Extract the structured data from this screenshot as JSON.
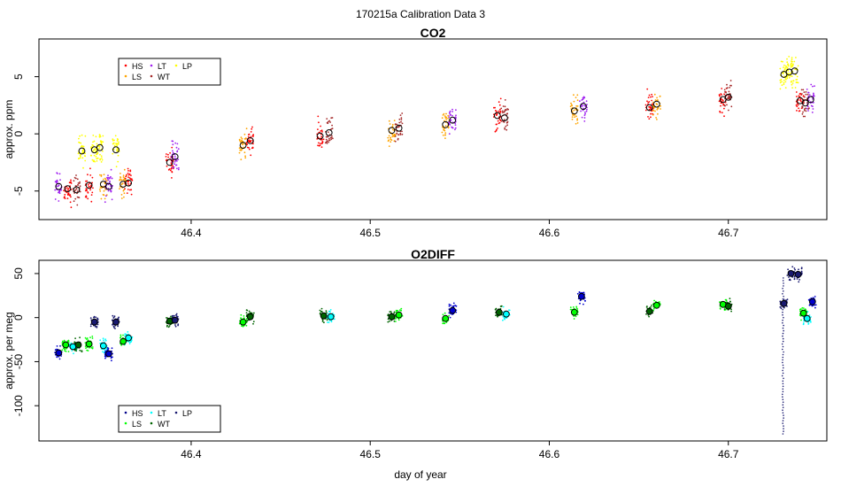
{
  "figure_title": "170215a   Calibration Data 3",
  "xlabel": "day of year",
  "legend_labels": [
    "HS",
    "LT",
    "LP",
    "LS",
    "WT"
  ],
  "chart_data": [
    {
      "type": "scatter",
      "title": "CO2",
      "xlabel": "",
      "ylabel": "approx. ppm",
      "xlim": [
        46.315,
        46.755
      ],
      "ylim": [
        -7.5,
        8.3
      ],
      "xticks": [
        46.4,
        46.5,
        46.6,
        46.7
      ],
      "yticks": [
        -5,
        0,
        5
      ],
      "legend_position": "top-left",
      "series": [
        {
          "name": "HS",
          "color": "#ff0000"
        },
        {
          "name": "LS",
          "color": "#ffa500"
        },
        {
          "name": "LT",
          "color": "#a020f0"
        },
        {
          "name": "WT",
          "color": "#a52a2a"
        },
        {
          "name": "LP",
          "color": "#ffff00"
        }
      ],
      "clusters": [
        {
          "x": 46.326,
          "y": -4.6,
          "color": "#a020f0"
        },
        {
          "x": 46.331,
          "y": -4.8,
          "color": "#ff0000"
        },
        {
          "x": 46.336,
          "y": -4.9,
          "color": "#a52a2a"
        },
        {
          "x": 46.339,
          "y": -1.5,
          "color": "#ffff00"
        },
        {
          "x": 46.343,
          "y": -4.5,
          "color": "#ff0000"
        },
        {
          "x": 46.346,
          "y": -1.4,
          "color": "#ffff00"
        },
        {
          "x": 46.349,
          "y": -1.2,
          "color": "#ffff00"
        },
        {
          "x": 46.351,
          "y": -4.4,
          "color": "#ffa500"
        },
        {
          "x": 46.354,
          "y": -4.6,
          "color": "#a020f0"
        },
        {
          "x": 46.358,
          "y": -1.4,
          "color": "#ffff00"
        },
        {
          "x": 46.362,
          "y": -4.4,
          "color": "#ffa500"
        },
        {
          "x": 46.365,
          "y": -4.3,
          "color": "#ff0000"
        },
        {
          "x": 46.388,
          "y": -2.5,
          "color": "#ff0000"
        },
        {
          "x": 46.391,
          "y": -2.0,
          "color": "#a020f0"
        },
        {
          "x": 46.429,
          "y": -1.0,
          "color": "#ffa500"
        },
        {
          "x": 46.433,
          "y": -0.6,
          "color": "#ff0000"
        },
        {
          "x": 46.472,
          "y": -0.2,
          "color": "#ff0000"
        },
        {
          "x": 46.477,
          "y": 0.1,
          "color": "#a52a2a"
        },
        {
          "x": 46.512,
          "y": 0.3,
          "color": "#ffa500"
        },
        {
          "x": 46.516,
          "y": 0.5,
          "color": "#a52a2a"
        },
        {
          "x": 46.542,
          "y": 0.8,
          "color": "#ffa500"
        },
        {
          "x": 46.546,
          "y": 1.2,
          "color": "#a020f0"
        },
        {
          "x": 46.571,
          "y": 1.6,
          "color": "#ff0000"
        },
        {
          "x": 46.575,
          "y": 1.4,
          "color": "#a52a2a"
        },
        {
          "x": 46.614,
          "y": 2.0,
          "color": "#ffa500"
        },
        {
          "x": 46.619,
          "y": 2.4,
          "color": "#a020f0"
        },
        {
          "x": 46.656,
          "y": 2.3,
          "color": "#ff0000"
        },
        {
          "x": 46.66,
          "y": 2.6,
          "color": "#ffa500"
        },
        {
          "x": 46.697,
          "y": 3.0,
          "color": "#ff0000"
        },
        {
          "x": 46.7,
          "y": 3.2,
          "color": "#a52a2a"
        },
        {
          "x": 46.731,
          "y": 5.2,
          "color": "#ffff00"
        },
        {
          "x": 46.734,
          "y": 5.4,
          "color": "#ffff00"
        },
        {
          "x": 46.737,
          "y": 5.5,
          "color": "#ffff00"
        },
        {
          "x": 46.74,
          "y": 2.9,
          "color": "#ff0000"
        },
        {
          "x": 46.743,
          "y": 2.7,
          "color": "#a52a2a"
        },
        {
          "x": 46.746,
          "y": 3.0,
          "color": "#a020f0"
        }
      ]
    },
    {
      "type": "scatter",
      "title": "O2DIFF",
      "xlabel": "day of year",
      "ylabel": "approx. per meg",
      "xlim": [
        46.315,
        46.755
      ],
      "ylim": [
        -140,
        65
      ],
      "xticks": [
        46.4,
        46.5,
        46.6,
        46.7
      ],
      "yticks": [
        -100,
        -50,
        0,
        50
      ],
      "legend_position": "bottom-left",
      "series": [
        {
          "name": "HS",
          "color": "#00008b"
        },
        {
          "name": "LS",
          "color": "#00ff00"
        },
        {
          "name": "LT",
          "color": "#00ffff"
        },
        {
          "name": "WT",
          "color": "#006400"
        },
        {
          "name": "LP",
          "color": "#191970"
        }
      ],
      "clusters": [
        {
          "x": 46.326,
          "y": -40,
          "color": "#0000cd"
        },
        {
          "x": 46.33,
          "y": -31,
          "color": "#00ff00"
        },
        {
          "x": 46.334,
          "y": -33,
          "color": "#00ffff"
        },
        {
          "x": 46.337,
          "y": -31,
          "color": "#006400"
        },
        {
          "x": 46.343,
          "y": -30,
          "color": "#00ff00"
        },
        {
          "x": 46.346,
          "y": -5,
          "color": "#191970"
        },
        {
          "x": 46.351,
          "y": -32,
          "color": "#00ffff"
        },
        {
          "x": 46.354,
          "y": -41,
          "color": "#0000cd"
        },
        {
          "x": 46.358,
          "y": -5,
          "color": "#191970"
        },
        {
          "x": 46.362,
          "y": -27,
          "color": "#00ff00"
        },
        {
          "x": 46.365,
          "y": -23,
          "color": "#00ffff"
        },
        {
          "x": 46.388,
          "y": -4,
          "color": "#006400"
        },
        {
          "x": 46.391,
          "y": -3,
          "color": "#191970"
        },
        {
          "x": 46.429,
          "y": -5,
          "color": "#00ff00"
        },
        {
          "x": 46.433,
          "y": 1,
          "color": "#006400"
        },
        {
          "x": 46.474,
          "y": 2,
          "color": "#006400"
        },
        {
          "x": 46.478,
          "y": 1,
          "color": "#00ffff"
        },
        {
          "x": 46.512,
          "y": 1,
          "color": "#006400"
        },
        {
          "x": 46.516,
          "y": 3,
          "color": "#00ff00"
        },
        {
          "x": 46.542,
          "y": -1,
          "color": "#00ff00"
        },
        {
          "x": 46.546,
          "y": 8,
          "color": "#0000cd"
        },
        {
          "x": 46.572,
          "y": 6,
          "color": "#006400"
        },
        {
          "x": 46.576,
          "y": 4,
          "color": "#00ffff"
        },
        {
          "x": 46.614,
          "y": 6,
          "color": "#00ff00"
        },
        {
          "x": 46.618,
          "y": 24,
          "color": "#0000cd"
        },
        {
          "x": 46.656,
          "y": 7,
          "color": "#006400"
        },
        {
          "x": 46.66,
          "y": 14,
          "color": "#00ff00"
        },
        {
          "x": 46.697,
          "y": 15,
          "color": "#00ff00"
        },
        {
          "x": 46.7,
          "y": 13,
          "color": "#006400"
        },
        {
          "x": 46.731,
          "y": 16,
          "color": "#191970"
        },
        {
          "x": 46.735,
          "y": 50,
          "color": "#191970"
        },
        {
          "x": 46.739,
          "y": 49,
          "color": "#191970"
        },
        {
          "x": 46.742,
          "y": 5,
          "color": "#00ff00"
        },
        {
          "x": 46.744,
          "y": -1,
          "color": "#00ffff"
        },
        {
          "x": 46.747,
          "y": 18,
          "color": "#0000cd"
        }
      ]
    }
  ]
}
